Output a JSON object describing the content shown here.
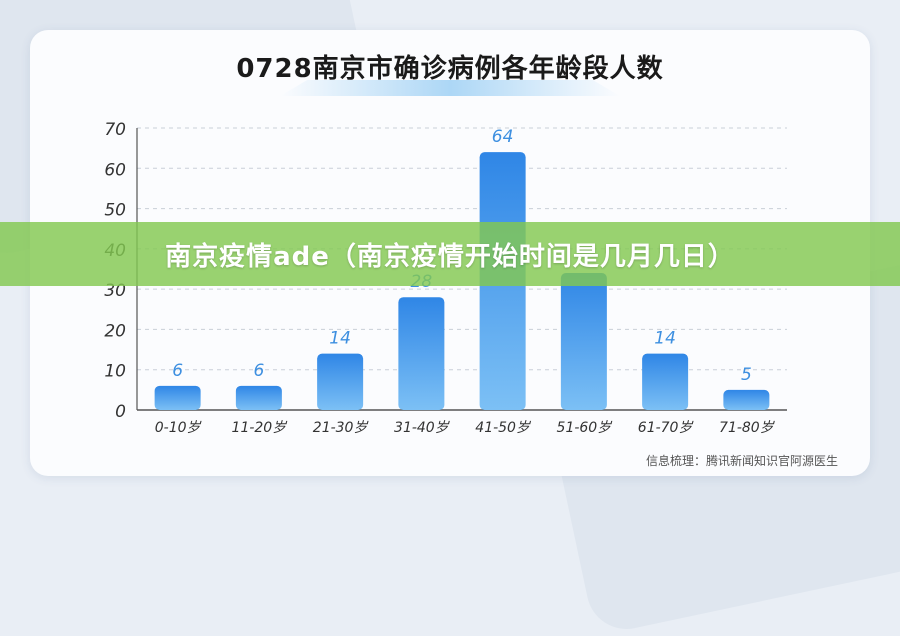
{
  "chart_data": {
    "type": "bar",
    "title": "0728南京市确诊病例各年龄段人数",
    "categories": [
      "0-10岁",
      "11-20岁",
      "21-30岁",
      "31-40岁",
      "41-50岁",
      "51-60岁",
      "61-70岁",
      "71-80岁"
    ],
    "values": [
      6,
      6,
      14,
      28,
      64,
      34,
      14,
      5
    ],
    "data_labels": [
      "6",
      "6",
      "14",
      "28",
      "64",
      "",
      "14",
      "5"
    ],
    "ylim": [
      0,
      70
    ],
    "yticks": [
      0,
      10,
      20,
      30,
      40,
      50,
      60,
      70
    ],
    "grid": true,
    "bar_color": "#3d8fe0",
    "label_color": "#3d8fe0"
  },
  "source": "信息梳理：腾讯新闻知识官阿源医生",
  "banner": "南京疫情ade（南京疫情开始时间是几月几日）"
}
